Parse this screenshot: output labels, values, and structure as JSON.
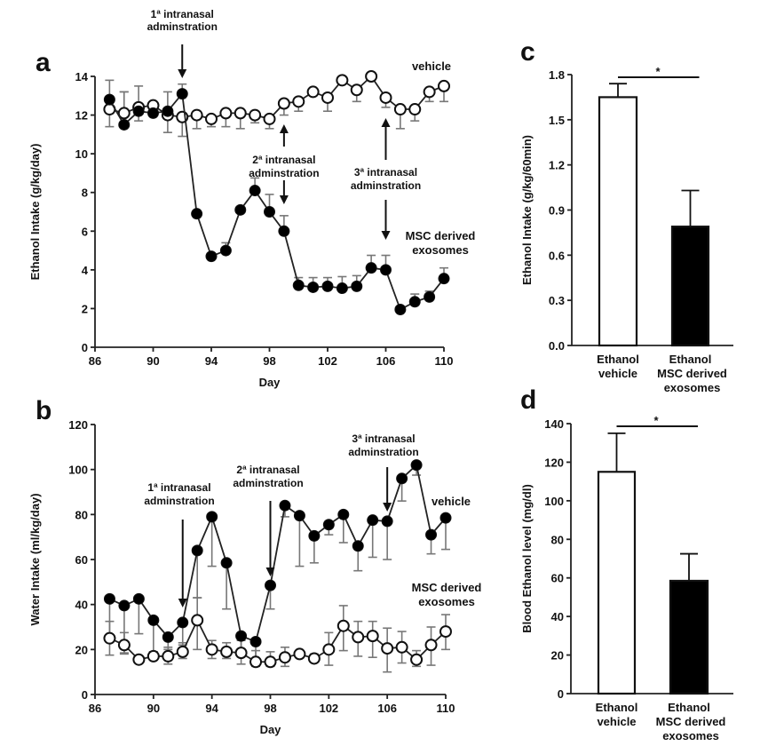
{
  "chart_data": [
    {
      "id": "a",
      "panel_letter": "a",
      "type": "line",
      "xlabel": "Day",
      "ylabel": "Ethanol Intake (g/kg/day)",
      "xlim": [
        86,
        110
      ],
      "ylim": [
        0,
        14
      ],
      "xticks": [
        86,
        90,
        94,
        98,
        102,
        106,
        110
      ],
      "yticks": [
        0,
        2,
        4,
        6,
        8,
        10,
        12,
        14
      ],
      "grid": false,
      "x": [
        87,
        88,
        89,
        90,
        91,
        92,
        93,
        94,
        95,
        96,
        97,
        98,
        99,
        100,
        101,
        102,
        103,
        104,
        105,
        106,
        107,
        108,
        109,
        110
      ],
      "series": [
        {
          "name": "vehicle",
          "marker": "open-circle",
          "values": [
            12.3,
            12.1,
            12.4,
            12.5,
            12.0,
            11.9,
            12.0,
            11.8,
            12.1,
            12.1,
            12.0,
            11.8,
            12.6,
            12.7,
            13.2,
            12.9,
            13.8,
            13.3,
            14.0,
            12.9,
            12.3,
            12.3,
            13.2,
            13.5
          ],
          "err_low": [
            11.4,
            null,
            null,
            null,
            11.1,
            10.9,
            11.3,
            11.4,
            11.4,
            11.3,
            11.6,
            11.3,
            12.0,
            12.2,
            null,
            12.2,
            null,
            12.7,
            null,
            12.4,
            11.3,
            11.7,
            12.7,
            12.7
          ],
          "err_high": [
            null,
            13.2,
            13.5,
            null,
            null,
            null,
            null,
            null,
            null,
            null,
            null,
            null,
            null,
            null,
            null,
            null,
            null,
            null,
            null,
            null,
            null,
            null,
            null,
            null
          ]
        },
        {
          "name": "MSC derived exosomes",
          "marker": "filled-circle",
          "values": [
            12.8,
            11.5,
            12.2,
            12.1,
            12.2,
            13.1,
            6.9,
            4.7,
            5.0,
            7.1,
            8.1,
            7.0,
            6.0,
            3.2,
            3.1,
            3.15,
            3.05,
            3.15,
            4.1,
            4.0,
            1.95,
            2.35,
            2.6,
            3.55
          ],
          "err_high": [
            13.8,
            13.2,
            null,
            null,
            13.2,
            13.6,
            null,
            null,
            5.4,
            null,
            8.75,
            7.9,
            6.8,
            3.6,
            3.6,
            3.6,
            3.65,
            3.7,
            4.75,
            4.75,
            null,
            2.75,
            2.9,
            4.1
          ],
          "err_low": [
            null,
            null,
            11.7,
            null,
            null,
            null,
            null,
            null,
            null,
            null,
            null,
            null,
            null,
            null,
            null,
            null,
            null,
            null,
            null,
            null,
            null,
            null,
            null,
            null
          ]
        }
      ],
      "annotations": [
        {
          "text": [
            "1ª intranasal",
            "adminstration"
          ],
          "day": 92,
          "arrow": "down"
        },
        {
          "text": [
            "2ª intranasal",
            "adminstration"
          ],
          "day": 99,
          "arrow": "both"
        },
        {
          "text": [
            "3ª intranasal",
            "adminstration"
          ],
          "day": 106,
          "arrow": "both"
        }
      ],
      "series_labels": [
        {
          "text": [
            "vehicle"
          ]
        },
        {
          "text": [
            "MSC  derived",
            "exosomes"
          ]
        }
      ]
    },
    {
      "id": "b",
      "panel_letter": "b",
      "type": "line",
      "xlabel": "Day",
      "ylabel": "Water Intake (ml/kg/day)",
      "xlim": [
        86,
        110
      ],
      "ylim": [
        0,
        120
      ],
      "xticks": [
        86,
        90,
        94,
        98,
        102,
        106,
        110
      ],
      "yticks": [
        0,
        20,
        40,
        60,
        80,
        100,
        120
      ],
      "grid": false,
      "x": [
        87,
        88,
        89,
        90,
        91,
        92,
        93,
        94,
        95,
        96,
        97,
        98,
        99,
        100,
        101,
        102,
        103,
        104,
        105,
        106,
        107,
        108,
        109,
        110
      ],
      "series": [
        {
          "name": "vehicle",
          "marker": "filled-circle",
          "values": [
            42.5,
            39.5,
            42.5,
            33,
            25.5,
            32,
            64,
            79,
            58.5,
            26,
            23.5,
            48.5,
            84,
            79.5,
            70.5,
            75.5,
            80,
            66,
            77.5,
            77,
            96,
            102,
            71,
            78.5
          ],
          "err_low": [
            24,
            18.5,
            27,
            19,
            20,
            22,
            43,
            57,
            38,
            20,
            13,
            38,
            79,
            57,
            58.5,
            71,
            67.5,
            55,
            61,
            60,
            86,
            97.5,
            62.5,
            64.5
          ]
        },
        {
          "name": "MSC derived exosomes",
          "marker": "open-circle",
          "values": [
            25,
            22,
            15.5,
            17,
            17,
            19,
            33,
            20,
            19,
            18.5,
            14.5,
            14.5,
            16.5,
            18,
            16,
            20,
            30.5,
            25.5,
            26,
            20.5,
            21,
            15.5,
            22,
            28
          ],
          "err_low": [
            17.5,
            18,
            14.5,
            15.5,
            13.5,
            16,
            20,
            16,
            16,
            13.5,
            12.5,
            12.5,
            12.5,
            17,
            15,
            13,
            19.5,
            17,
            16.5,
            10,
            14,
            12.5,
            13,
            20
          ],
          "err_high": [
            32.5,
            27.5,
            17,
            19,
            21,
            23,
            43,
            24,
            23,
            24,
            19.5,
            19,
            21,
            19,
            18,
            27.5,
            39.5,
            32.5,
            32.5,
            29.5,
            28,
            19.5,
            30,
            35.5
          ]
        }
      ],
      "annotations": [
        {
          "text": [
            "1ª intranasal",
            "adminstration"
          ],
          "day": 92,
          "arrow": "down"
        },
        {
          "text": [
            "2ª intranasal",
            "adminstration"
          ],
          "day": 98,
          "arrow": "down"
        },
        {
          "text": [
            "3ª intranasal",
            "adminstration"
          ],
          "day": 106,
          "arrow": "down"
        }
      ],
      "series_labels": [
        {
          "text": [
            "vehicle"
          ]
        },
        {
          "text": [
            "MSC  derived",
            "exosomes"
          ]
        }
      ]
    },
    {
      "id": "c",
      "panel_letter": "c",
      "type": "bar",
      "ylabel": "Ethanol Intake (g/kg/60min)",
      "ylim": [
        0,
        1.8
      ],
      "yticks": [
        "0.0",
        "0.3",
        "0.6",
        "0.9",
        "1.2",
        "1.5",
        "1.8"
      ],
      "categories": [
        [
          "Ethanol",
          "vehicle"
        ],
        [
          "Ethanol",
          "MSC derived",
          "exosomes"
        ]
      ],
      "values": [
        1.65,
        0.79
      ],
      "errors_upper": [
        1.74,
        1.03
      ],
      "bar_fill": [
        "#ffffff",
        "#000000"
      ],
      "significance": "*"
    },
    {
      "id": "d",
      "panel_letter": "d",
      "type": "bar",
      "ylabel": "Blood Ethanol level (mg/dl)",
      "ylim": [
        0,
        140
      ],
      "yticks": [
        "0",
        "20",
        "40",
        "60",
        "80",
        "100",
        "120",
        "140"
      ],
      "categories": [
        [
          "Ethanol",
          "vehicle"
        ],
        [
          "Ethanol",
          "MSC derived",
          "exosomes"
        ]
      ],
      "values": [
        115,
        58.5
      ],
      "errors_upper": [
        135,
        72.5
      ],
      "bar_fill": [
        "#ffffff",
        "#000000"
      ],
      "significance": "*"
    }
  ]
}
